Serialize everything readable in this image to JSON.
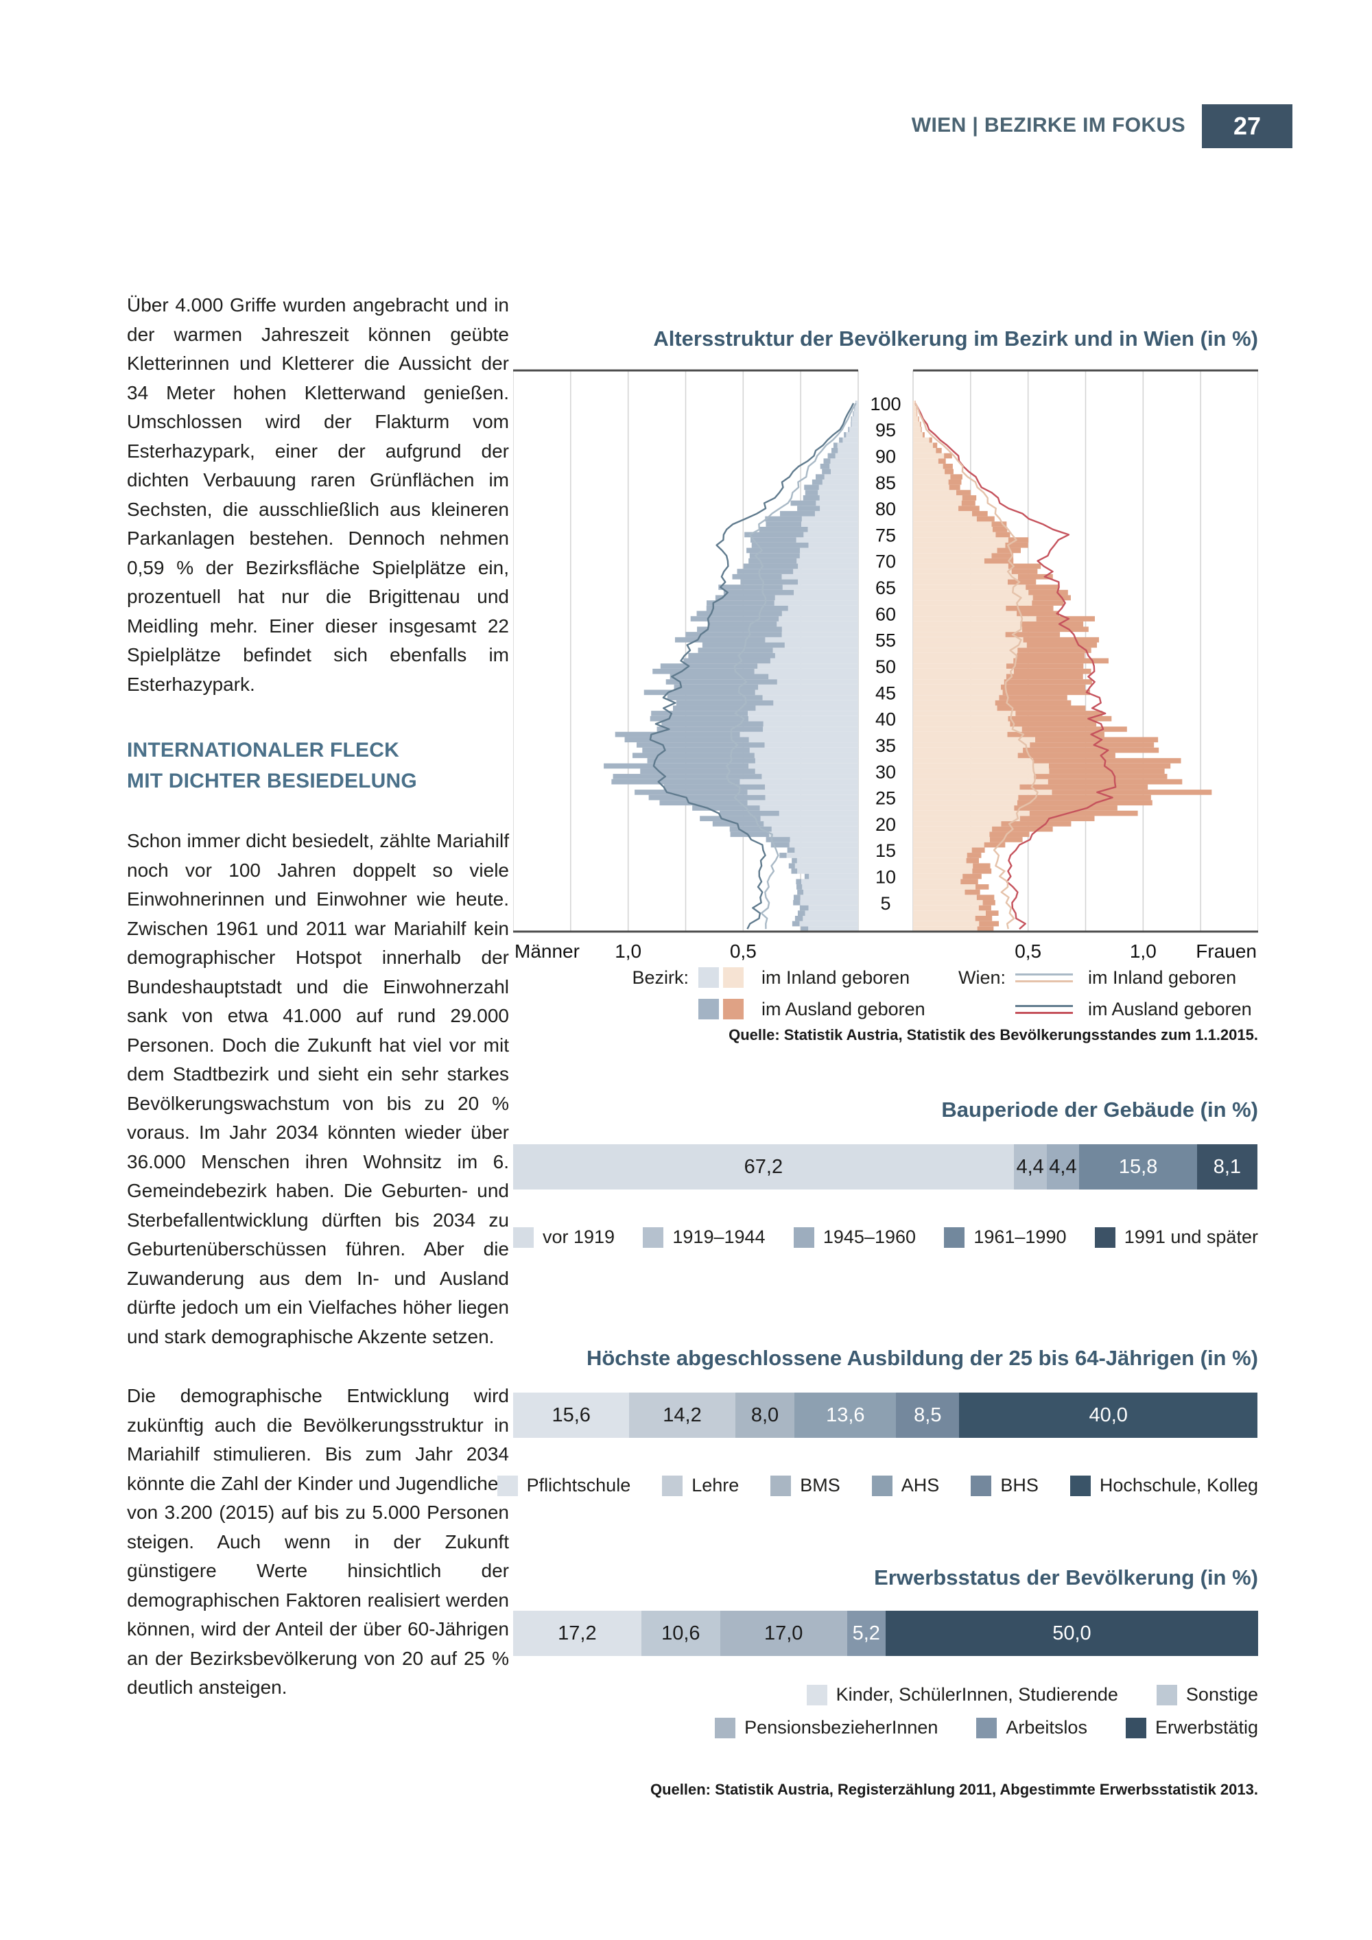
{
  "header": {
    "title": "WIEN | BEZIRKE IM FOKUS",
    "page_number": "27",
    "title_color": "#4a6372",
    "badge_bg": "#3d5366"
  },
  "article": {
    "paragraph1": "Über 4.000 Griffe wurden angebracht und in der warmen Jahreszeit können geübte Kletterinnen und Kletterer die Aussicht der 34 Meter hohen Kletterwand genießen. Umschlossen wird der Flakturm vom Esterhazypark, einer der aufgrund der dichten Verbauung raren Grünflächen im Sechsten, die ausschließlich aus kleineren Parkanlagen bestehen. Dennoch nehmen 0,59 % der Bezirksfläche Spielplätze ein, prozentuell hat nur die Brigittenau und Meidling mehr. Einer dieser insgesamt 22 Spielplätze befindet sich ebenfalls im Esterhazypark.",
    "heading_line1": "INTERNATIONALER FLECK",
    "heading_line2": "MIT DICHTER BESIEDELUNG",
    "paragraph2": "Schon immer dicht besiedelt, zählte Mariahilf noch vor 100 Jahren doppelt so viele Einwohnerinnen und Einwohner wie heute. Zwischen 1961 und 2011 war Mariahilf kein demographischer Hotspot innerhalb der Bundeshauptstadt und die Einwohnerzahl sank von etwa 41.000 auf rund 29.000 Personen. Doch die Zukunft hat viel vor mit dem Stadtbezirk und sieht ein sehr starkes Bevölkerungswachstum von bis zu 20 % voraus. Im Jahr 2034 könnten wieder über 36.000 Menschen ihren Wohnsitz im 6. Gemeindebezirk haben. Die Geburten- und Sterbefallentwicklung dürften bis 2034 zu Geburtenüberschüssen führen. Aber die Zuwanderung aus dem In- und Ausland dürfte jedoch um ein Vielfaches höher liegen und stark demographische Akzente setzen.",
    "paragraph3": "Die demographische Entwicklung wird zukünftig auch die Bevölkerungsstruktur in Mariahilf stimulieren. Bis zum Jahr 2034 könnte die Zahl der Kinder und Jugendlichen von 3.200 (2015) auf bis zu 5.000 Personen steigen. Auch wenn in der Zukunft günstigere Werte hinsichtlich der demographischen Faktoren realisiert werden können, wird der Anteil der über 60-Jährigen an der Bezirksbevölkerung von 20 auf 25 % deutlich ansteigen."
  },
  "chart_data": [
    {
      "id": "altersstruktur",
      "type": "pyramid",
      "title": "Altersstruktur der Bevölkerung im Bezirk und in Wien (in %)",
      "axis": {
        "left_label": "Männer",
        "right_label": "Frauen",
        "tick_values": [
          1.0,
          0.5
        ],
        "tick_labels": [
          "1,0",
          "0,5"
        ],
        "max_value": 1.5,
        "grid_step": 0.25,
        "age_min": 0,
        "age_max": 100,
        "age_label_step": 5
      },
      "ages_anchor_step": 5,
      "series": {
        "men_bezirk_inland": {
          "color": "#d9e0e8",
          "values": [
            0.24,
            0.23,
            0.25,
            0.29,
            0.37,
            0.44,
            0.47,
            0.46,
            0.44,
            0.41,
            0.39,
            0.36,
            0.33,
            0.31,
            0.26,
            0.25,
            0.19,
            0.15,
            0.11,
            0.035,
            0.01
          ]
        },
        "men_bezirk_ausland": {
          "color": "#a3b3c4",
          "values": [
            0.04,
            0.03,
            0.02,
            0.03,
            0.22,
            0.44,
            0.62,
            0.51,
            0.44,
            0.41,
            0.4,
            0.37,
            0.32,
            0.26,
            0.2,
            0.22,
            0.11,
            0.04,
            0.03,
            0.005,
            0.002
          ]
        },
        "women_bezirk_inland": {
          "color": "#f6e3d3",
          "values": [
            0.3,
            0.27,
            0.23,
            0.28,
            0.43,
            0.52,
            0.55,
            0.48,
            0.43,
            0.4,
            0.43,
            0.45,
            0.47,
            0.45,
            0.36,
            0.37,
            0.23,
            0.15,
            0.12,
            0.03,
            0.01
          ]
        },
        "women_bezirk_ausland": {
          "color": "#dfa285",
          "values": [
            0.08,
            0.06,
            0.08,
            0.06,
            0.27,
            0.59,
            0.56,
            0.51,
            0.4,
            0.33,
            0.39,
            0.32,
            0.19,
            0.14,
            0.12,
            0.07,
            0.08,
            0.05,
            0.03,
            0.005,
            0.002
          ]
        },
        "men_wien_inland": {
          "color": "#a9b9c6",
          "values": [
            0.42,
            0.4,
            0.37,
            0.35,
            0.42,
            0.52,
            0.55,
            0.54,
            0.52,
            0.5,
            0.52,
            0.49,
            0.44,
            0.4,
            0.42,
            0.47,
            0.33,
            0.25,
            0.18,
            0.07,
            0.01
          ]
        },
        "men_wien_ausland": {
          "color": "#5f7a8d",
          "values": [
            0.46,
            0.44,
            0.42,
            0.4,
            0.52,
            0.78,
            0.88,
            0.87,
            0.84,
            0.8,
            0.76,
            0.7,
            0.63,
            0.58,
            0.58,
            0.6,
            0.42,
            0.32,
            0.2,
            0.08,
            0.02
          ]
        },
        "women_wien_inland": {
          "color": "#e5c2aa",
          "values": [
            0.43,
            0.41,
            0.39,
            0.35,
            0.43,
            0.52,
            0.55,
            0.48,
            0.43,
            0.42,
            0.43,
            0.45,
            0.47,
            0.45,
            0.41,
            0.44,
            0.36,
            0.26,
            0.17,
            0.06,
            0.01
          ]
        },
        "women_wien_ausland": {
          "color": "#c5525c",
          "values": [
            0.47,
            0.45,
            0.42,
            0.44,
            0.55,
            0.84,
            0.85,
            0.82,
            0.8,
            0.78,
            0.76,
            0.71,
            0.64,
            0.63,
            0.55,
            0.69,
            0.42,
            0.28,
            0.19,
            0.07,
            0.01
          ]
        }
      },
      "legend": {
        "bezirk_label": "Bezirk:",
        "wien_label": "Wien:",
        "inland_label": "im Inland geboren",
        "ausland_label": "im Ausland geboren"
      },
      "source": "Quelle: Statistik Austria, Statistik des Bevölkerungsstandes zum 1.1.2015."
    },
    {
      "id": "bauperiode",
      "type": "stacked_bar",
      "title": "Bauperiode der Gebäude (in %)",
      "segments": [
        {
          "label": "vor 1919",
          "value": 67.2,
          "display": "67,2",
          "color": "#d6dde5",
          "text_color": "#1a1a1a"
        },
        {
          "label": "1919–1944",
          "value": 4.4,
          "display": "4,4",
          "color": "#b5c1ce",
          "text_color": "#1a1a1a"
        },
        {
          "label": "1945–1960",
          "value": 4.4,
          "display": "4,4",
          "color": "#9dadbe",
          "text_color": "#1a1a1a"
        },
        {
          "label": "1961–1990",
          "value": 15.8,
          "display": "15,8",
          "color": "#72889d",
          "text_color": "#ffffff"
        },
        {
          "label": "1991 und später",
          "value": 8.1,
          "display": "8,1",
          "color": "#3c5266",
          "text_color": "#ffffff"
        }
      ],
      "legend_rows": [
        [
          {
            "label": "vor 1919",
            "color": "#d6dde5"
          },
          {
            "label": "1919–1944",
            "color": "#b5c1ce"
          },
          {
            "label": "1945–1960",
            "color": "#9dadbe"
          },
          {
            "label": "1961–1990",
            "color": "#72889d"
          },
          {
            "label": "1991 und später",
            "color": "#3c5266"
          }
        ]
      ]
    },
    {
      "id": "ausbildung",
      "type": "stacked_bar",
      "title": "Höchste abgeschlossene Ausbildung der 25 bis 64-Jährigen (in %)",
      "segments": [
        {
          "label": "Pflichtschule",
          "value": 15.6,
          "display": "15,6",
          "color": "#dce2e9",
          "text_color": "#1a1a1a"
        },
        {
          "label": "Lehre",
          "value": 14.2,
          "display": "14,2",
          "color": "#c3ccd6",
          "text_color": "#1a1a1a"
        },
        {
          "label": "BMS",
          "value": 8.0,
          "display": "8,0",
          "color": "#a9b6c3",
          "text_color": "#1a1a1a"
        },
        {
          "label": "AHS",
          "value": 13.6,
          "display": "13,6",
          "color": "#8da0b1",
          "text_color": "#ffffff"
        },
        {
          "label": "BHS",
          "value": 8.5,
          "display": "8,5",
          "color": "#74889d",
          "text_color": "#ffffff"
        },
        {
          "label": "Hochschule, Kolleg",
          "value": 40.0,
          "display": "40,0",
          "color": "#3a5468",
          "text_color": "#ffffff"
        }
      ],
      "legend_rows": [
        [
          {
            "label": "Pflichtschule",
            "color": "#dce2e9"
          },
          {
            "label": "Lehre",
            "color": "#c3ccd6"
          },
          {
            "label": "BMS",
            "color": "#a9b6c3"
          },
          {
            "label": "AHS",
            "color": "#8da0b1"
          },
          {
            "label": "BHS",
            "color": "#74889d"
          },
          {
            "label": "Hochschule, Kolleg",
            "color": "#3a5468"
          }
        ]
      ]
    },
    {
      "id": "erwerbsstatus",
      "type": "stacked_bar",
      "title": "Erwerbsstatus der Bevölkerung (in %)",
      "segments": [
        {
          "label": "Kinder, SchülerInnen, Studierende",
          "value": 17.2,
          "display": "17,2",
          "color": "#dbe1e8",
          "text_color": "#1a1a1a"
        },
        {
          "label": "Sonstige",
          "value": 10.6,
          "display": "10,6",
          "color": "#bec9d4",
          "text_color": "#1a1a1a"
        },
        {
          "label": "PensionsbezieherInnen",
          "value": 17.0,
          "display": "17,0",
          "color": "#a9b6c4",
          "text_color": "#1a1a1a"
        },
        {
          "label": "Arbeitslos",
          "value": 5.2,
          "display": "5,2",
          "color": "#8396aa",
          "text_color": "#ffffff"
        },
        {
          "label": "Erwerbstätig",
          "value": 50.0,
          "display": "50,0",
          "color": "#374f63",
          "text_color": "#ffffff"
        }
      ],
      "legend_rows": [
        [
          {
            "label": "Kinder, SchülerInnen, Studierende",
            "color": "#dbe1e8"
          },
          {
            "label": "Sonstige",
            "color": "#bec9d4"
          }
        ],
        [
          {
            "label": "PensionsbezieherInnen",
            "color": "#a9b6c4"
          },
          {
            "label": "Arbeitslos",
            "color": "#8396aa"
          },
          {
            "label": "Erwerbstätig",
            "color": "#374f63"
          }
        ]
      ],
      "source": "Quellen: Statistik Austria, Registerzählung 2011, Abgestimmte Erwerbsstatistik 2013."
    }
  ]
}
